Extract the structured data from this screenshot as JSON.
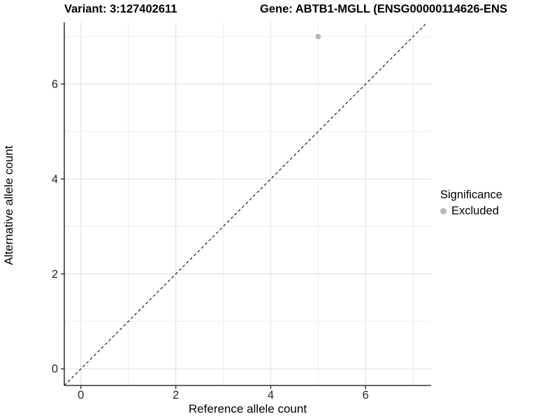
{
  "titles": {
    "variant": "Variant: 3:127402611",
    "gene": "Gene: ABTB1-MGLL (ENSG00000114626-ENS"
  },
  "legend": {
    "title": "Significance",
    "items": [
      {
        "label": "Excluded",
        "color": "#b9b9b9"
      }
    ]
  },
  "chart_data": {
    "type": "scatter",
    "xlabel": "Reference allele count",
    "ylabel": "Alternative allele count",
    "xlim": [
      -0.35,
      7.38
    ],
    "ylim": [
      -0.35,
      7.3
    ],
    "x_breaks": [
      0,
      2,
      4,
      6
    ],
    "y_breaks": [
      0,
      2,
      4,
      6
    ],
    "x_minor_breaks": [
      1,
      3,
      5,
      7
    ],
    "y_minor_breaks": [
      1,
      3,
      5,
      7
    ],
    "series": [
      {
        "name": "Excluded",
        "color": "#b9b9b9",
        "points": [
          {
            "x": 5,
            "y": 7
          }
        ]
      }
    ],
    "reference_line": {
      "type": "identity",
      "style": "dashed",
      "color": "#000000"
    },
    "grid": true,
    "legend_position": "right",
    "colors": {
      "background": "#ffffff",
      "grid_major": "#e2e2e2",
      "grid_minor": "#ececec",
      "axis_line": "#333333",
      "tick_text": "#262626"
    }
  }
}
